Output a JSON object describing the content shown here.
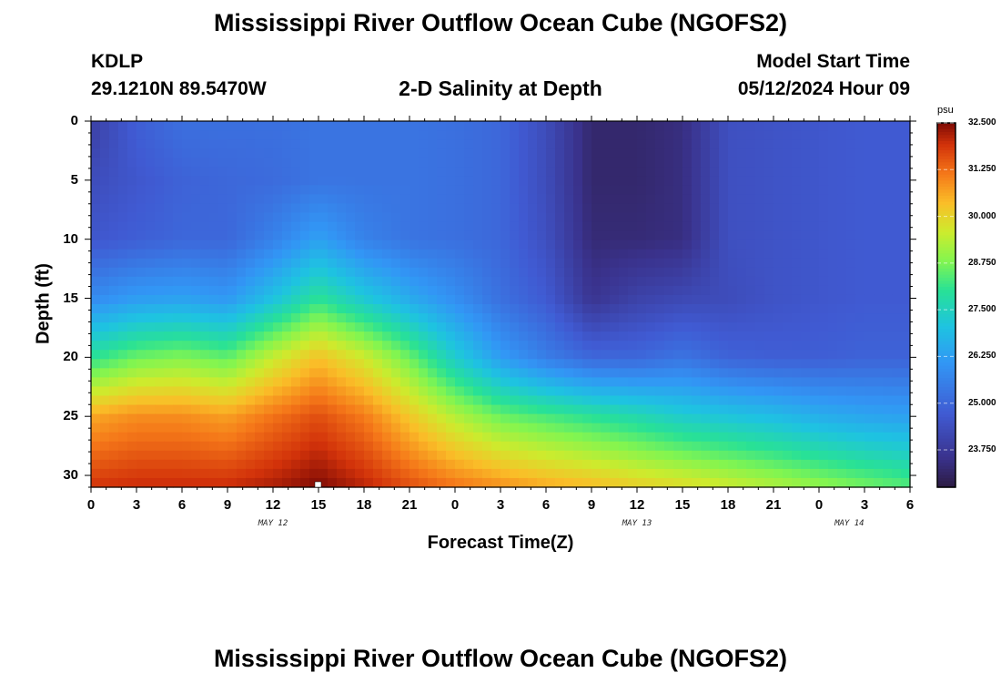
{
  "header": {
    "title": "Mississippi River Outflow Ocean Cube (NGOFS2)",
    "station_id": "KDLP",
    "station_coords": "29.1210N  89.5470W",
    "plot_title": "2-D Salinity at Depth",
    "model_start_label": "Model Start Time",
    "model_start_value": "05/12/2024 Hour 09"
  },
  "footer": {
    "title": "Mississippi River Outflow Ocean Cube (NGOFS2)"
  },
  "chart_data": {
    "type": "heatmap",
    "xlabel": "Forecast Time(Z)",
    "ylabel": "Depth (ft)",
    "x_tick_labels": [
      "0",
      "3",
      "6",
      "9",
      "12",
      "15",
      "18",
      "21",
      "0",
      "3",
      "6",
      "9",
      "12",
      "15",
      "18",
      "21",
      "0",
      "3",
      "6"
    ],
    "x_range_hours": [
      0,
      54
    ],
    "date_labels": [
      {
        "label": "MAY 12",
        "hour": 12
      },
      {
        "label": "MAY 13",
        "hour": 36
      },
      {
        "label": "MAY 14",
        "hour": 50
      }
    ],
    "y_ticks": [
      "0",
      "5",
      "10",
      "15",
      "20",
      "25",
      "30"
    ],
    "ylim": [
      0,
      31
    ],
    "y_inverted": true,
    "colorbar": {
      "unit": "psu",
      "min": 22.75,
      "max": 32.5,
      "tick_labels": [
        "32.500",
        "31.250",
        "30.000",
        "28.750",
        "27.500",
        "26.250",
        "25.000",
        "23.750"
      ],
      "tick_values": [
        32.5,
        31.25,
        30.0,
        28.75,
        27.5,
        26.25,
        25.0,
        23.75
      ]
    },
    "depth_levels_ft": [
      0,
      5,
      10,
      15,
      20,
      25,
      31
    ],
    "time_hours": [
      0,
      3,
      6,
      9,
      12,
      15,
      18,
      21,
      24,
      27,
      30,
      33,
      36,
      39,
      42,
      45,
      48,
      51,
      54
    ],
    "salinity_psu": [
      [
        23.9,
        24.8,
        25.2,
        25.2,
        25.2,
        25.3,
        25.3,
        25.3,
        25.2,
        25.0,
        24.3,
        23.2,
        23.2,
        23.4,
        24.4,
        24.5,
        24.6,
        24.7,
        24.7
      ],
      [
        24.3,
        24.6,
        24.9,
        25.0,
        25.1,
        25.3,
        25.3,
        25.3,
        25.2,
        25.0,
        24.3,
        23.2,
        23.2,
        23.4,
        24.4,
        24.5,
        24.6,
        24.7,
        24.7
      ],
      [
        24.6,
        24.8,
        25.0,
        25.0,
        25.6,
        26.3,
        25.6,
        25.3,
        25.2,
        25.0,
        24.4,
        23.3,
        23.3,
        23.4,
        24.4,
        24.5,
        24.6,
        24.7,
        24.7
      ],
      [
        25.8,
        26.2,
        26.3,
        26.1,
        27.0,
        28.0,
        27.2,
        26.5,
        25.9,
        25.2,
        24.7,
        23.6,
        24.0,
        24.2,
        24.3,
        24.5,
        24.6,
        24.7,
        24.7
      ],
      [
        28.0,
        28.6,
        28.8,
        28.5,
        29.5,
        30.3,
        29.6,
        28.6,
        27.3,
        26.2,
        25.5,
        25.0,
        25.0,
        25.3,
        24.9,
        24.8,
        24.8,
        24.9,
        24.9
      ],
      [
        30.6,
        30.9,
        30.9,
        30.7,
        31.2,
        31.6,
        31.1,
        30.2,
        29.3,
        28.6,
        28.3,
        28.0,
        27.7,
        27.3,
        27.1,
        26.9,
        26.6,
        26.4,
        26.3
      ],
      [
        31.9,
        32.0,
        32.0,
        32.0,
        32.2,
        32.5,
        32.1,
        31.6,
        31.2,
        30.9,
        30.6,
        30.4,
        30.1,
        29.9,
        29.6,
        29.3,
        29.0,
        28.7,
        28.4
      ]
    ]
  }
}
